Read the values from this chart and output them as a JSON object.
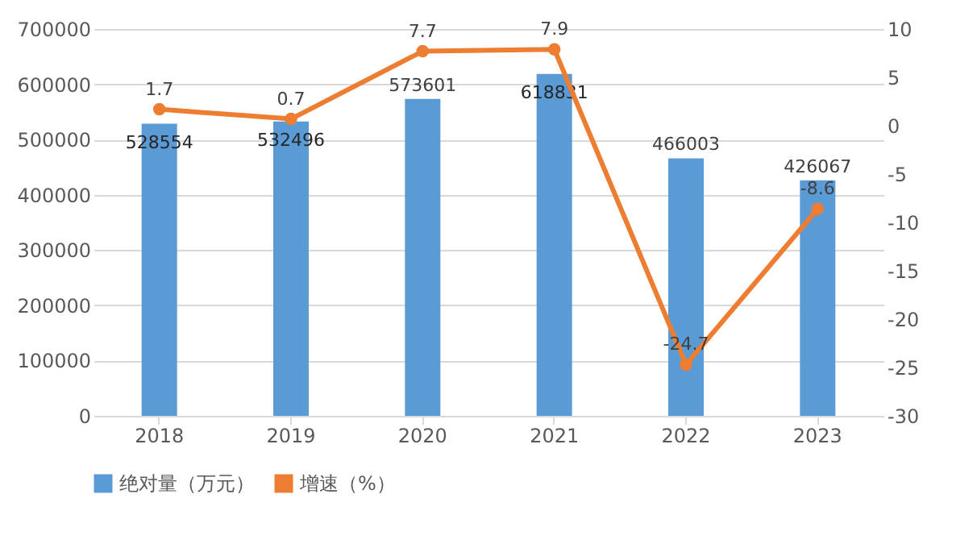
{
  "chart_data": {
    "type": "bar",
    "categories": [
      "2018",
      "2019",
      "2020",
      "2021",
      "2022",
      "2023"
    ],
    "series": [
      {
        "name": "绝对量（万元）",
        "type": "bar",
        "color": "#5b9bd5",
        "values": [
          528554,
          532496,
          573601,
          618831,
          466003,
          426067
        ]
      },
      {
        "name": "增速（%）",
        "type": "line",
        "axis": "y2",
        "color": "#ed7d31",
        "values": [
          1.7,
          0.7,
          7.7,
          7.9,
          -24.7,
          -8.6
        ]
      }
    ],
    "ylim": [
      0,
      700000
    ],
    "yticks": [
      0,
      100000,
      200000,
      300000,
      400000,
      500000,
      600000,
      700000
    ],
    "y2lim": [
      -30,
      10
    ],
    "y2ticks": [
      -30,
      -25,
      -20,
      -15,
      -10,
      -5,
      0,
      5,
      10
    ],
    "grid": "y",
    "legend": "bottom",
    "marker": "circle",
    "data_labels": true
  }
}
